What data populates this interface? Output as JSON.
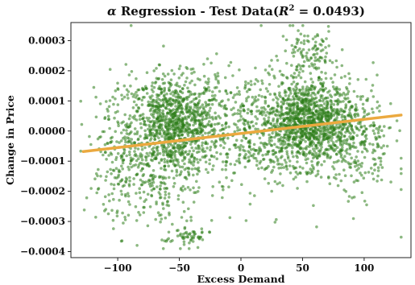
{
  "chart_data": {
    "type": "scatter",
    "title": {
      "prefix": "α",
      "text": " Regression - Test Data(",
      "r2_symbol": "R",
      "r2_exp": "2",
      "r2_value": " = 0.0493)"
    },
    "xlabel": "Excess Demand",
    "ylabel": "Change in Price",
    "xlim": [
      -138,
      138
    ],
    "ylim": [
      -0.00042,
      0.00036
    ],
    "xticks": [
      -100,
      -50,
      0,
      50,
      100
    ],
    "xtick_labels": [
      "−100",
      "−50",
      "0",
      "50",
      "100"
    ],
    "yticks": [
      -0.0004,
      -0.0003,
      -0.0002,
      -0.0001,
      0,
      0.0001,
      0.0002,
      0.0003
    ],
    "ytick_labels": [
      "−0.0004",
      "−0.0003",
      "−0.0002",
      "−0.0001",
      "0.0000",
      "0.0001",
      "0.0002",
      "0.0003"
    ],
    "scatter_color": "#2e7d1a",
    "fit_color": "#eba93f",
    "fit_line": {
      "x": [
        -128,
        130
      ],
      "y": [
        -6.8e-05,
        5.3e-05
      ]
    },
    "clusters": [
      {
        "cx": -55,
        "cy": 2e-05,
        "sx": 18,
        "sy": 8e-05,
        "n": 900
      },
      {
        "cx": 55,
        "cy": 3e-05,
        "sx": 20,
        "sy": 7e-05,
        "n": 1100
      },
      {
        "cx": 0,
        "cy": 1e-05,
        "sx": 45,
        "sy": 0.0001,
        "n": 700
      },
      {
        "cx": -70,
        "cy": -0.0002,
        "sx": 20,
        "sy": 7e-05,
        "n": 180
      },
      {
        "cx": 55,
        "cy": 0.00025,
        "sx": 12,
        "sy": 5e-05,
        "n": 120
      },
      {
        "cx": -100,
        "cy": -5e-05,
        "sx": 12,
        "sy": 0.0001,
        "n": 150
      },
      {
        "cx": 95,
        "cy": -5e-05,
        "sx": 15,
        "sy": 0.0001,
        "n": 200
      },
      {
        "cx": -45,
        "cy": -0.00035,
        "sx": 10,
        "sy": 2e-05,
        "n": 60
      }
    ]
  }
}
